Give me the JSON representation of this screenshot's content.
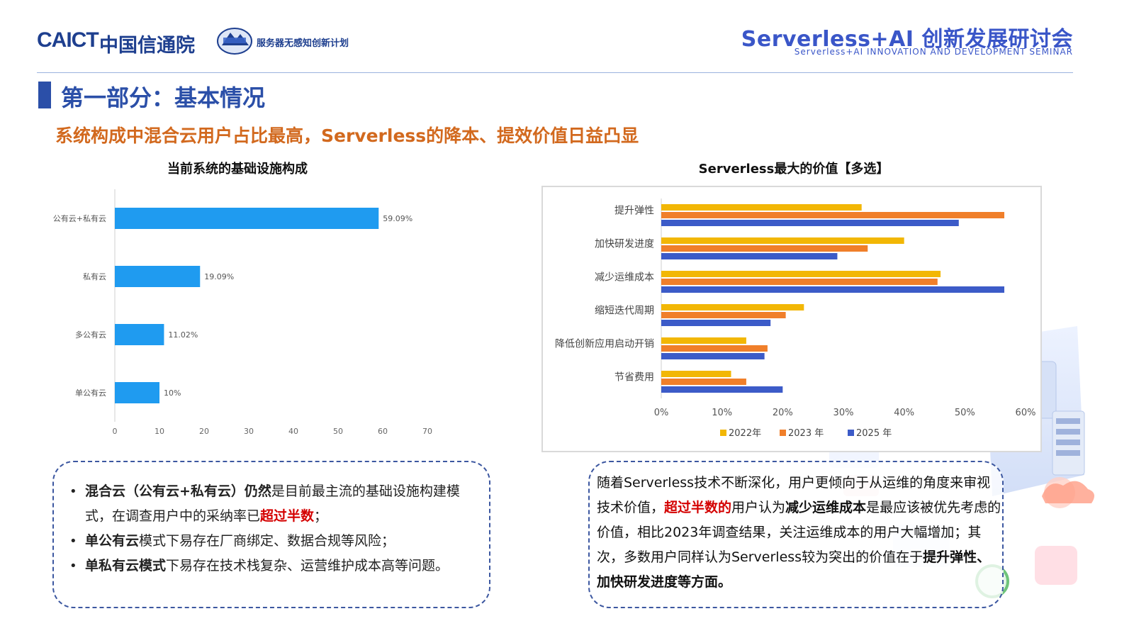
{
  "header": {
    "caict_logo": "CAICT",
    "caict_cn": "中国信通院",
    "plan_name": "服务器无感知创新计划",
    "seminar_title": "Serverless+AI 创新发展研讨会",
    "seminar_subtitle": "Serverless+AI INNOVATION AND DEVELOPMENT SEMINAR"
  },
  "section_title": "第一部分：基本情况",
  "headline": "系统构成中混合云用户占比最高，Serverless的降本、提效价值日益凸显",
  "colors": {
    "accent_blue": "#2b4fa8",
    "headline_orange": "#d2691e",
    "bar_blue": "#1f9bf0",
    "s2022": "#f2b705",
    "s2023": "#f07f2a",
    "s2025": "#3c5bc8"
  },
  "chart_data": [
    {
      "type": "bar",
      "orientation": "horizontal",
      "title": "当前系统的基础设施构成",
      "categories": [
        "公有云+私有云",
        "私有云",
        "多公有云",
        "单公有云"
      ],
      "values": [
        59.09,
        19.09,
        11.02,
        10
      ],
      "data_labels": [
        "59.09%",
        "19.09%",
        "11.02%",
        "10%"
      ],
      "xlim": [
        0,
        70
      ],
      "xticks": [
        "0",
        "10",
        "20",
        "30",
        "40",
        "50",
        "60",
        "70"
      ],
      "grid": false
    },
    {
      "type": "bar",
      "orientation": "horizontal",
      "title": "Serverless最大的价值【多选】",
      "categories": [
        "提升弹性",
        "加快研发进度",
        "减少运维成本",
        "缩短迭代周期",
        "降低创新应用启动开销",
        "节省费用"
      ],
      "series": [
        {
          "name": "2022年",
          "values": [
            33,
            40,
            46,
            23.5,
            14,
            11.5
          ]
        },
        {
          "name": "2023 年",
          "values": [
            56.5,
            34,
            45.5,
            20.5,
            17.5,
            14
          ]
        },
        {
          "name": "2025 年",
          "values": [
            49,
            29,
            56.5,
            18,
            17,
            20
          ]
        }
      ],
      "xlim": [
        0,
        60
      ],
      "xticks": [
        "0%",
        "10%",
        "20%",
        "30%",
        "40%",
        "50%",
        "60%"
      ],
      "legend": "bottom",
      "grid": false
    }
  ],
  "left_notes": [
    {
      "pre_bold": "混合云（公有云+私有云）仍然",
      "text1": "是目前最主流的基础设施构建模式，在调查用户中的采纳率已",
      "red": "超过半数",
      "text2": "；"
    },
    {
      "pre_bold": "单公有云",
      "text1": "模式下易存在厂商绑定、数据合规等风险；",
      "red": "",
      "text2": ""
    },
    {
      "pre_bold": "单私有云模式",
      "text1": "下易存在技术栈复杂、运营维护成本高等问题。",
      "red": "",
      "text2": ""
    }
  ],
  "right_note": {
    "p1": "随着Serverless技术不断深化，用户更倾向于从运维的角度来审视技术价值，",
    "red": "超过半数的",
    "p2": "用户认为",
    "b1": "减少运维成本",
    "p3": "是最应该被优先考虑的价值，相比2023年调查结果，关注运维成本的用户大幅增加；其次，多数用户同样认为Serverless较为突出的价值在于",
    "b2": "提升弹性、加快研发进度等方面。"
  }
}
